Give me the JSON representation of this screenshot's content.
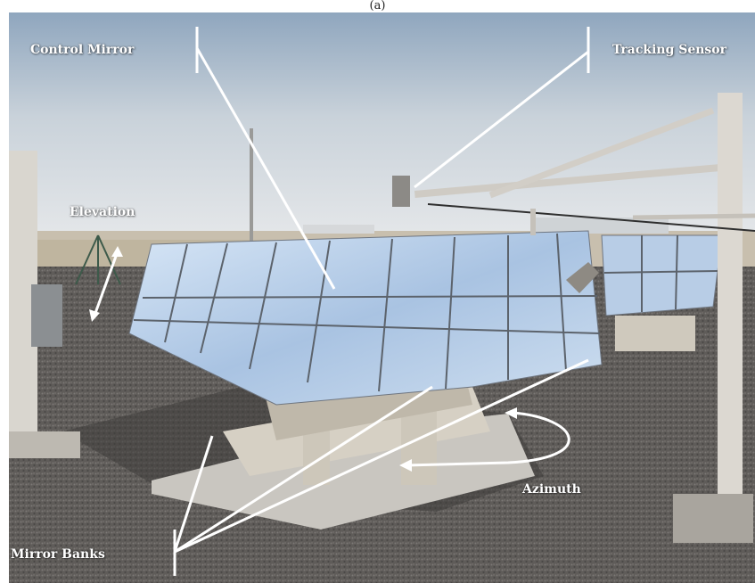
{
  "caption": "(a)",
  "labels": {
    "control_mirror": "Control Mirror",
    "tracking_sensor": "Tracking Sensor",
    "elevation": "Elevation",
    "azimuth": "Azimuth",
    "mirror_banks": "Mirror Banks"
  },
  "colors": {
    "sky_top": "#9fb3c8",
    "sky_bottom": "#e4e7ea",
    "ground": "#6a6764",
    "frame": "#d8d2c6",
    "mirror": "#b9d0ea",
    "annotation": "#ffffff"
  }
}
